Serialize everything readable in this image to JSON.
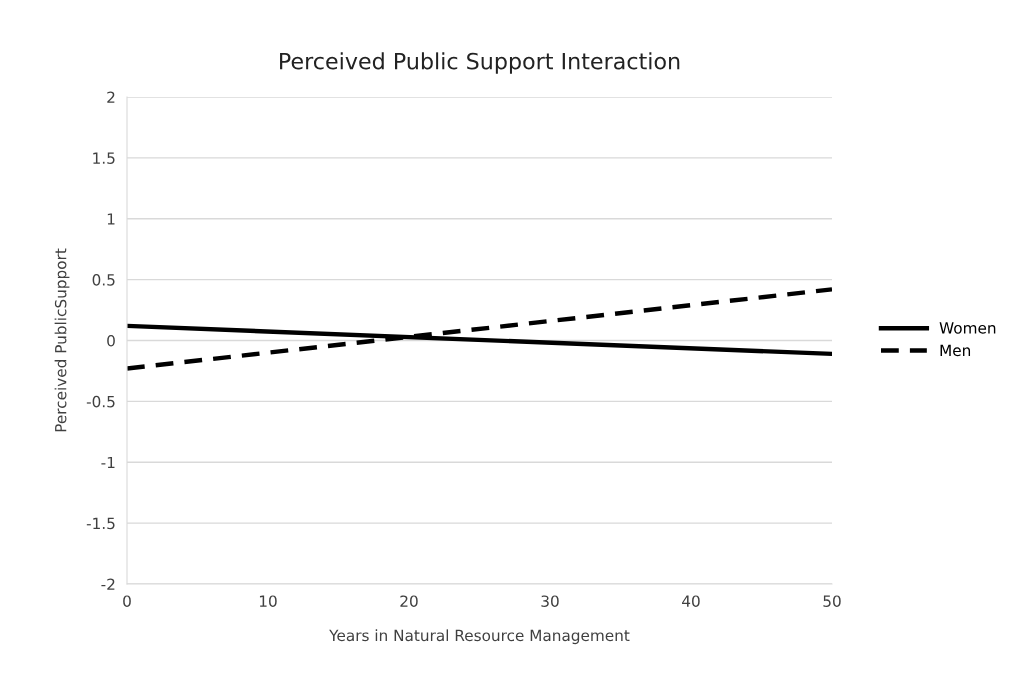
{
  "chart_data": {
    "type": "line",
    "title": "Perceived Public Support Interaction",
    "xlabel": "Years in Natural Resource Management",
    "ylabel": "Perceived PublicSupport",
    "x": [
      0,
      50
    ],
    "series": [
      {
        "name": "Women",
        "color": "#000000",
        "values": [
          0.12,
          -0.11
        ],
        "line_style": "solid"
      },
      {
        "name": "Men",
        "color": "#000000",
        "values": [
          -0.23,
          0.42
        ],
        "line_style": "dashed"
      }
    ],
    "xlim": [
      0,
      50
    ],
    "xticks": [
      0,
      10,
      20,
      30,
      40,
      50
    ],
    "ylim": [
      -2,
      2
    ],
    "yticks": [
      -2,
      -1.5,
      -1,
      -0.5,
      0,
      0.5,
      1,
      1.5,
      2
    ],
    "grid": "y",
    "legend": "right",
    "marker": "none"
  }
}
